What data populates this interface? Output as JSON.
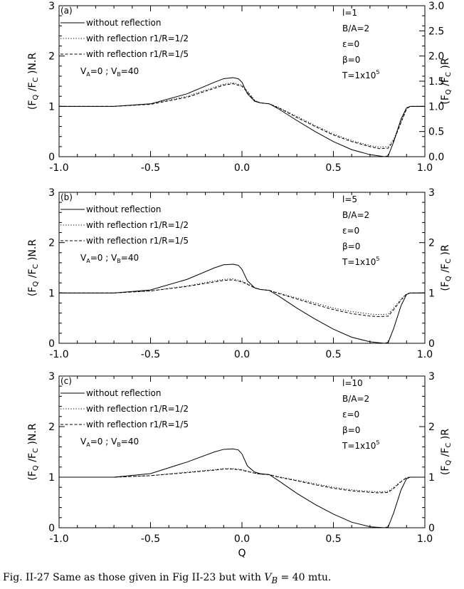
{
  "caption": {
    "prefix": "Fig. II-27 Same as those given in Fig II-23 but with ",
    "var": "V",
    "sub": "B",
    "suffix": " = 40 mtu."
  },
  "chart_data": [
    {
      "type": "line",
      "panel_label": "(a)",
      "xlim": [
        -1.0,
        1.0
      ],
      "ylim": [
        0,
        3
      ],
      "right_ylim": [
        0,
        3
      ],
      "x_ticks": [
        "-1.0",
        "-0.5",
        "0.0",
        "0.5",
        "1.0"
      ],
      "left_ticks": [
        "0",
        "1",
        "2",
        "3"
      ],
      "right_ticks": [
        "0.0",
        "0.5",
        "1.0",
        "1.5",
        "2.0",
        "2.5",
        "3.0"
      ],
      "ylabel_left": [
        "F",
        "Q",
        "F",
        "C",
        "N.R"
      ],
      "ylabel_right": [
        "F",
        "Q",
        "F",
        "C",
        "R"
      ],
      "legend": [
        "without reflection",
        "with reflection r1/R=1/2",
        "with reflection r1/R=1/5"
      ],
      "velocity": {
        "a": "0",
        "b": "40"
      },
      "params": {
        "l": "l=1",
        "ba": "B/A=2",
        "eps": "=0",
        "beta": "=0",
        "t_base": "T=1x10",
        "t_exp": "5"
      },
      "series": [
        {
          "style": "solid",
          "x": [
            -1.0,
            -0.7,
            -0.5,
            -0.3,
            -0.15,
            -0.1,
            -0.05,
            -0.02,
            0.0,
            0.03,
            0.07,
            0.1,
            0.15,
            0.2,
            0.3,
            0.4,
            0.5,
            0.6,
            0.7,
            0.78,
            0.8,
            0.83,
            0.87,
            0.9,
            0.92,
            0.95,
            1.0
          ],
          "y": [
            1.0,
            1.0,
            1.05,
            1.25,
            1.48,
            1.55,
            1.57,
            1.55,
            1.48,
            1.25,
            1.1,
            1.07,
            1.05,
            0.95,
            0.72,
            0.5,
            0.3,
            0.14,
            0.04,
            0.0,
            0.02,
            0.3,
            0.75,
            0.97,
            1.0,
            1.0,
            1.0
          ]
        },
        {
          "style": "dotted",
          "x": [
            -1.0,
            -0.7,
            -0.5,
            -0.3,
            -0.15,
            -0.1,
            -0.05,
            0.0,
            0.03,
            0.07,
            0.1,
            0.15,
            0.2,
            0.3,
            0.4,
            0.5,
            0.6,
            0.7,
            0.75,
            0.8,
            0.83,
            0.87,
            0.9,
            0.92,
            0.95,
            1.0
          ],
          "y": [
            1.0,
            1.0,
            1.05,
            1.2,
            1.38,
            1.44,
            1.47,
            1.42,
            1.3,
            1.12,
            1.07,
            1.05,
            0.98,
            0.8,
            0.62,
            0.45,
            0.32,
            0.22,
            0.19,
            0.2,
            0.35,
            0.7,
            0.96,
            1.0,
            1.0,
            1.0
          ]
        },
        {
          "style": "dashed",
          "x": [
            -1.0,
            -0.7,
            -0.5,
            -0.3,
            -0.15,
            -0.1,
            -0.05,
            0.0,
            0.03,
            0.07,
            0.1,
            0.15,
            0.2,
            0.3,
            0.4,
            0.5,
            0.6,
            0.7,
            0.75,
            0.8,
            0.83,
            0.87,
            0.9,
            0.92,
            0.95,
            1.0
          ],
          "y": [
            1.0,
            1.0,
            1.04,
            1.18,
            1.36,
            1.42,
            1.45,
            1.4,
            1.28,
            1.11,
            1.07,
            1.05,
            0.97,
            0.78,
            0.6,
            0.43,
            0.3,
            0.2,
            0.16,
            0.17,
            0.32,
            0.68,
            0.95,
            1.0,
            1.0,
            1.0
          ]
        }
      ]
    },
    {
      "type": "line",
      "panel_label": "(b)",
      "xlim": [
        -1.0,
        1.0
      ],
      "ylim": [
        0,
        3
      ],
      "right_ylim": [
        0,
        3
      ],
      "x_ticks": [
        "-1.0",
        "-0.5",
        "0.0",
        "0.5",
        "1.0"
      ],
      "left_ticks": [
        "0",
        "1",
        "2",
        "3"
      ],
      "right_ticks": [
        "0",
        "1",
        "2",
        "3"
      ],
      "ylabel_left": [
        "F",
        "Q",
        "F",
        "C",
        "N.R"
      ],
      "ylabel_right": [
        "F",
        "Q",
        "F",
        "C",
        "R"
      ],
      "legend": [
        "without reflection",
        "with reflection r1/R=1/2",
        "with reflection r1/R=1/5"
      ],
      "velocity": {
        "a": "0",
        "b": "40"
      },
      "params": {
        "l": "l=5",
        "ba": "B/A=2",
        "eps": "=0",
        "beta": "=0",
        "t_base": "T=1x10",
        "t_exp": "5"
      },
      "series": [
        {
          "style": "solid",
          "x": [
            -1.0,
            -0.7,
            -0.5,
            -0.3,
            -0.15,
            -0.1,
            -0.05,
            -0.02,
            0.0,
            0.03,
            0.07,
            0.1,
            0.15,
            0.2,
            0.3,
            0.4,
            0.5,
            0.6,
            0.7,
            0.78,
            0.8,
            0.83,
            0.87,
            0.9,
            0.92,
            0.95,
            1.0
          ],
          "y": [
            1.0,
            1.0,
            1.06,
            1.27,
            1.5,
            1.56,
            1.57,
            1.55,
            1.47,
            1.24,
            1.1,
            1.07,
            1.05,
            0.94,
            0.7,
            0.48,
            0.28,
            0.12,
            0.03,
            0.0,
            0.02,
            0.3,
            0.75,
            0.97,
            1.0,
            1.0,
            1.0
          ]
        },
        {
          "style": "dotted",
          "x": [
            -1.0,
            -0.7,
            -0.5,
            -0.3,
            -0.15,
            -0.1,
            -0.05,
            0.0,
            0.03,
            0.07,
            0.1,
            0.15,
            0.2,
            0.3,
            0.4,
            0.5,
            0.6,
            0.7,
            0.75,
            0.8,
            0.83,
            0.87,
            0.9,
            0.92,
            0.95,
            1.0
          ],
          "y": [
            1.0,
            1.0,
            1.04,
            1.14,
            1.24,
            1.27,
            1.28,
            1.24,
            1.18,
            1.1,
            1.07,
            1.05,
            1.0,
            0.9,
            0.8,
            0.7,
            0.63,
            0.58,
            0.57,
            0.58,
            0.7,
            0.88,
            0.98,
            1.0,
            1.0,
            1.0
          ]
        },
        {
          "style": "dashed",
          "x": [
            -1.0,
            -0.7,
            -0.5,
            -0.3,
            -0.15,
            -0.1,
            -0.05,
            0.0,
            0.03,
            0.07,
            0.1,
            0.15,
            0.2,
            0.3,
            0.4,
            0.5,
            0.6,
            0.7,
            0.75,
            0.8,
            0.83,
            0.87,
            0.9,
            0.92,
            0.95,
            1.0
          ],
          "y": [
            1.0,
            1.0,
            1.04,
            1.13,
            1.22,
            1.25,
            1.26,
            1.22,
            1.17,
            1.1,
            1.07,
            1.05,
            0.99,
            0.88,
            0.77,
            0.67,
            0.59,
            0.54,
            0.53,
            0.54,
            0.67,
            0.86,
            0.98,
            1.0,
            1.0,
            1.0
          ]
        }
      ]
    },
    {
      "type": "line",
      "panel_label": "(c)",
      "xlim": [
        -1.0,
        1.0
      ],
      "ylim": [
        0,
        3
      ],
      "right_ylim": [
        0,
        3
      ],
      "x_ticks": [
        "-1.0",
        "-0.5",
        "0.0",
        "0.5",
        "1.0"
      ],
      "left_ticks": [
        "0",
        "1",
        "2",
        "3"
      ],
      "right_ticks": [
        "0",
        "1",
        "2",
        "3"
      ],
      "ylabel_left": [
        "F",
        "Q",
        "F",
        "C",
        "N.R"
      ],
      "ylabel_right": [
        "F",
        "Q",
        "F",
        "C",
        "R"
      ],
      "xlabel": "Q",
      "legend": [
        "without reflection",
        "with reflection r1/R=1/2",
        "with reflection r1/R=1/5"
      ],
      "velocity": {
        "a": "0",
        "b": "40"
      },
      "params": {
        "l": "l=10",
        "ba": "B/A=2",
        "eps": "=0",
        "beta": "=0",
        "t_base": "T=1x10",
        "t_exp": "5"
      },
      "series": [
        {
          "style": "solid",
          "x": [
            -1.0,
            -0.7,
            -0.5,
            -0.3,
            -0.15,
            -0.1,
            -0.05,
            -0.02,
            0.0,
            0.03,
            0.07,
            0.1,
            0.15,
            0.2,
            0.3,
            0.4,
            0.5,
            0.6,
            0.7,
            0.78,
            0.8,
            0.83,
            0.87,
            0.9,
            0.92,
            0.95,
            1.0
          ],
          "y": [
            1.0,
            1.0,
            1.07,
            1.3,
            1.5,
            1.55,
            1.56,
            1.54,
            1.46,
            1.22,
            1.1,
            1.07,
            1.05,
            0.93,
            0.68,
            0.46,
            0.27,
            0.11,
            0.02,
            0.0,
            0.02,
            0.3,
            0.75,
            0.97,
            1.0,
            1.0,
            1.0
          ]
        },
        {
          "style": "dotted",
          "x": [
            -1.0,
            -0.7,
            -0.5,
            -0.3,
            -0.15,
            -0.1,
            -0.05,
            0.0,
            0.03,
            0.07,
            0.1,
            0.15,
            0.2,
            0.3,
            0.4,
            0.5,
            0.6,
            0.7,
            0.75,
            0.8,
            0.83,
            0.87,
            0.9,
            0.92,
            0.95,
            1.0
          ],
          "y": [
            1.0,
            1.0,
            1.03,
            1.1,
            1.15,
            1.17,
            1.17,
            1.15,
            1.12,
            1.08,
            1.06,
            1.05,
            1.01,
            0.94,
            0.87,
            0.8,
            0.75,
            0.72,
            0.71,
            0.72,
            0.8,
            0.92,
            0.99,
            1.0,
            1.0,
            1.0
          ]
        },
        {
          "style": "dashed",
          "x": [
            -1.0,
            -0.7,
            -0.5,
            -0.3,
            -0.15,
            -0.1,
            -0.05,
            0.0,
            0.03,
            0.07,
            0.1,
            0.15,
            0.2,
            0.3,
            0.4,
            0.5,
            0.6,
            0.7,
            0.75,
            0.8,
            0.83,
            0.87,
            0.9,
            0.92,
            0.95,
            1.0
          ],
          "y": [
            1.0,
            1.0,
            1.03,
            1.09,
            1.14,
            1.16,
            1.16,
            1.14,
            1.11,
            1.08,
            1.06,
            1.05,
            1.0,
            0.93,
            0.85,
            0.78,
            0.73,
            0.7,
            0.69,
            0.7,
            0.78,
            0.91,
            0.99,
            1.0,
            1.0,
            1.0
          ]
        }
      ]
    }
  ]
}
